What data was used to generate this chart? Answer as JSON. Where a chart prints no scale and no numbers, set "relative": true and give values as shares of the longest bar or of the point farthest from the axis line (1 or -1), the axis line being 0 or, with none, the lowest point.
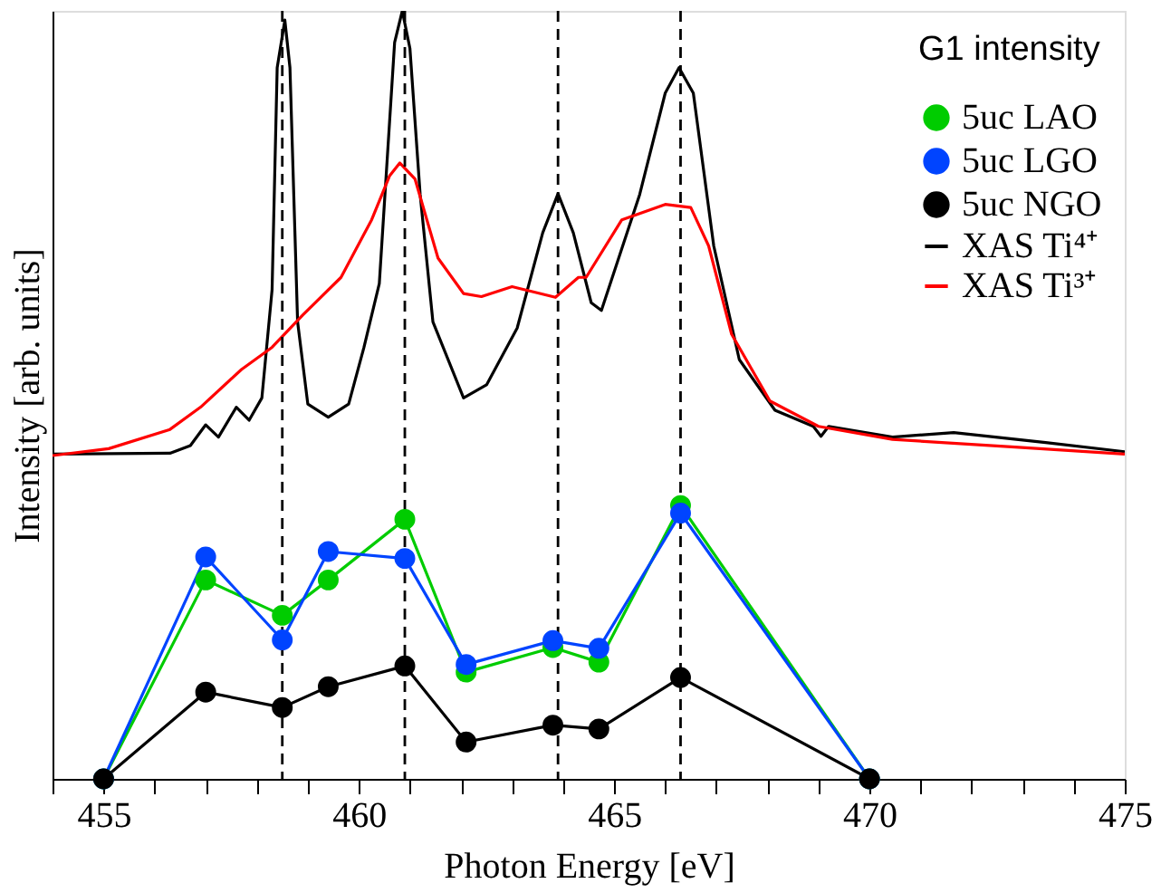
{
  "chart_data": {
    "type": "line",
    "relative": true,
    "xlabel": "Photon Energy [eV]",
    "ylabel": "Intensity [arb. units]",
    "legend_title": "G1 intensity",
    "legend": "top right",
    "grid": false,
    "xlim": [
      454,
      475
    ],
    "xticks": [
      {
        "value": 454,
        "label": null
      },
      455,
      {
        "value": 456,
        "label": null
      },
      {
        "value": 457,
        "label": null
      },
      {
        "value": 458,
        "label": null
      },
      {
        "value": 459,
        "label": null
      },
      460,
      {
        "value": 461,
        "label": null
      },
      {
        "value": 462,
        "label": null
      },
      {
        "value": 463,
        "label": null
      },
      {
        "value": 464,
        "label": null
      },
      465,
      {
        "value": 466,
        "label": null
      },
      {
        "value": 467,
        "label": null
      },
      {
        "value": 468,
        "label": null
      },
      {
        "value": 469,
        "label": null
      },
      470,
      {
        "value": 471,
        "label": null
      },
      {
        "value": 472,
        "label": null
      },
      {
        "value": 473,
        "label": null
      },
      {
        "value": 474,
        "label": null
      },
      475
    ],
    "ref_lines": [
      {
        "axis": "x",
        "value": 458.5,
        "label": null,
        "color": "#000000",
        "line_style": "dashed"
      },
      {
        "axis": "x",
        "value": 460.9,
        "label": null,
        "color": "#000000",
        "line_style": "dashed"
      },
      {
        "axis": "x",
        "value": 463.9,
        "label": null,
        "color": "#000000",
        "line_style": "dashed"
      },
      {
        "axis": "x",
        "value": 466.3,
        "label": null,
        "color": "#000000",
        "line_style": "dashed"
      }
    ],
    "series": [
      {
        "name": "5uc LAO",
        "color": "#00cc00",
        "marker": "circle",
        "x": [
          455,
          457,
          458.5,
          459.4,
          460.9,
          462.1,
          463.8,
          464.7,
          466.3,
          470
        ],
        "values": [
          0,
          0.259,
          0.213,
          0.259,
          0.338,
          0.139,
          0.171,
          0.152,
          0.356,
          0
        ]
      },
      {
        "name": "5uc LGO",
        "color": "#0044ff",
        "marker": "circle",
        "x": [
          455,
          457,
          458.5,
          459.4,
          460.9,
          462.1,
          463.8,
          464.7,
          466.3,
          470
        ],
        "values": [
          0,
          0.289,
          0.181,
          0.296,
          0.287,
          0.149,
          0.18,
          0.17,
          0.346,
          0
        ]
      },
      {
        "name": "5uc NGO",
        "color": "#000000",
        "marker": "circle",
        "x": [
          455,
          457,
          458.5,
          459.4,
          460.9,
          462.1,
          463.8,
          464.7,
          466.3,
          470
        ],
        "values": [
          0,
          0.113,
          0.093,
          0.12,
          0.147,
          0.048,
          0.07,
          0.065,
          0.132,
          0
        ]
      },
      {
        "name": "XAS Ti⁴⁺",
        "color": "#000000",
        "marker": "none",
        "x": [
          454.0,
          456.3,
          456.7,
          457.0,
          457.25,
          457.6,
          457.85,
          458.1,
          458.3,
          458.4,
          458.55,
          458.65,
          458.8,
          459.0,
          459.4,
          459.8,
          460.1,
          460.4,
          460.55,
          460.7,
          460.85,
          461.0,
          461.2,
          461.45,
          462.05,
          462.5,
          463.1,
          463.6,
          463.9,
          464.2,
          464.55,
          464.75,
          465.5,
          466.0,
          466.27,
          466.55,
          466.95,
          467.45,
          468.15,
          468.9,
          469.05,
          469.2,
          470.45,
          471.65,
          473.45,
          475
        ],
        "values": [
          0.423,
          0.424,
          0.434,
          0.461,
          0.445,
          0.484,
          0.467,
          0.496,
          0.637,
          0.926,
          0.988,
          0.926,
          0.595,
          0.488,
          0.471,
          0.488,
          0.562,
          0.645,
          0.802,
          0.959,
          1.0,
          0.951,
          0.761,
          0.595,
          0.496,
          0.513,
          0.587,
          0.711,
          0.762,
          0.711,
          0.62,
          0.61,
          0.761,
          0.893,
          0.926,
          0.893,
          0.694,
          0.546,
          0.48,
          0.459,
          0.446,
          0.459,
          0.445,
          0.451,
          0.438,
          0.426
        ]
      },
      {
        "name": "XAS Ti³⁺",
        "color": "#ff0000",
        "marker": "none",
        "x": [
          454.0,
          455.1,
          456.3,
          456.9,
          457.7,
          458.3,
          458.9,
          459.65,
          460.25,
          460.6,
          460.8,
          461.1,
          461.55,
          462.05,
          462.4,
          463.0,
          463.85,
          464.3,
          464.45,
          465.15,
          466.0,
          466.5,
          466.85,
          467.3,
          468.05,
          469.0,
          470.45,
          472.85,
          475
        ],
        "values": [
          0.421,
          0.43,
          0.455,
          0.484,
          0.533,
          0.562,
          0.604,
          0.653,
          0.728,
          0.785,
          0.802,
          0.781,
          0.678,
          0.632,
          0.628,
          0.641,
          0.627,
          0.653,
          0.653,
          0.728,
          0.748,
          0.744,
          0.694,
          0.579,
          0.492,
          0.459,
          0.442,
          0.432,
          0.423
        ]
      }
    ]
  }
}
